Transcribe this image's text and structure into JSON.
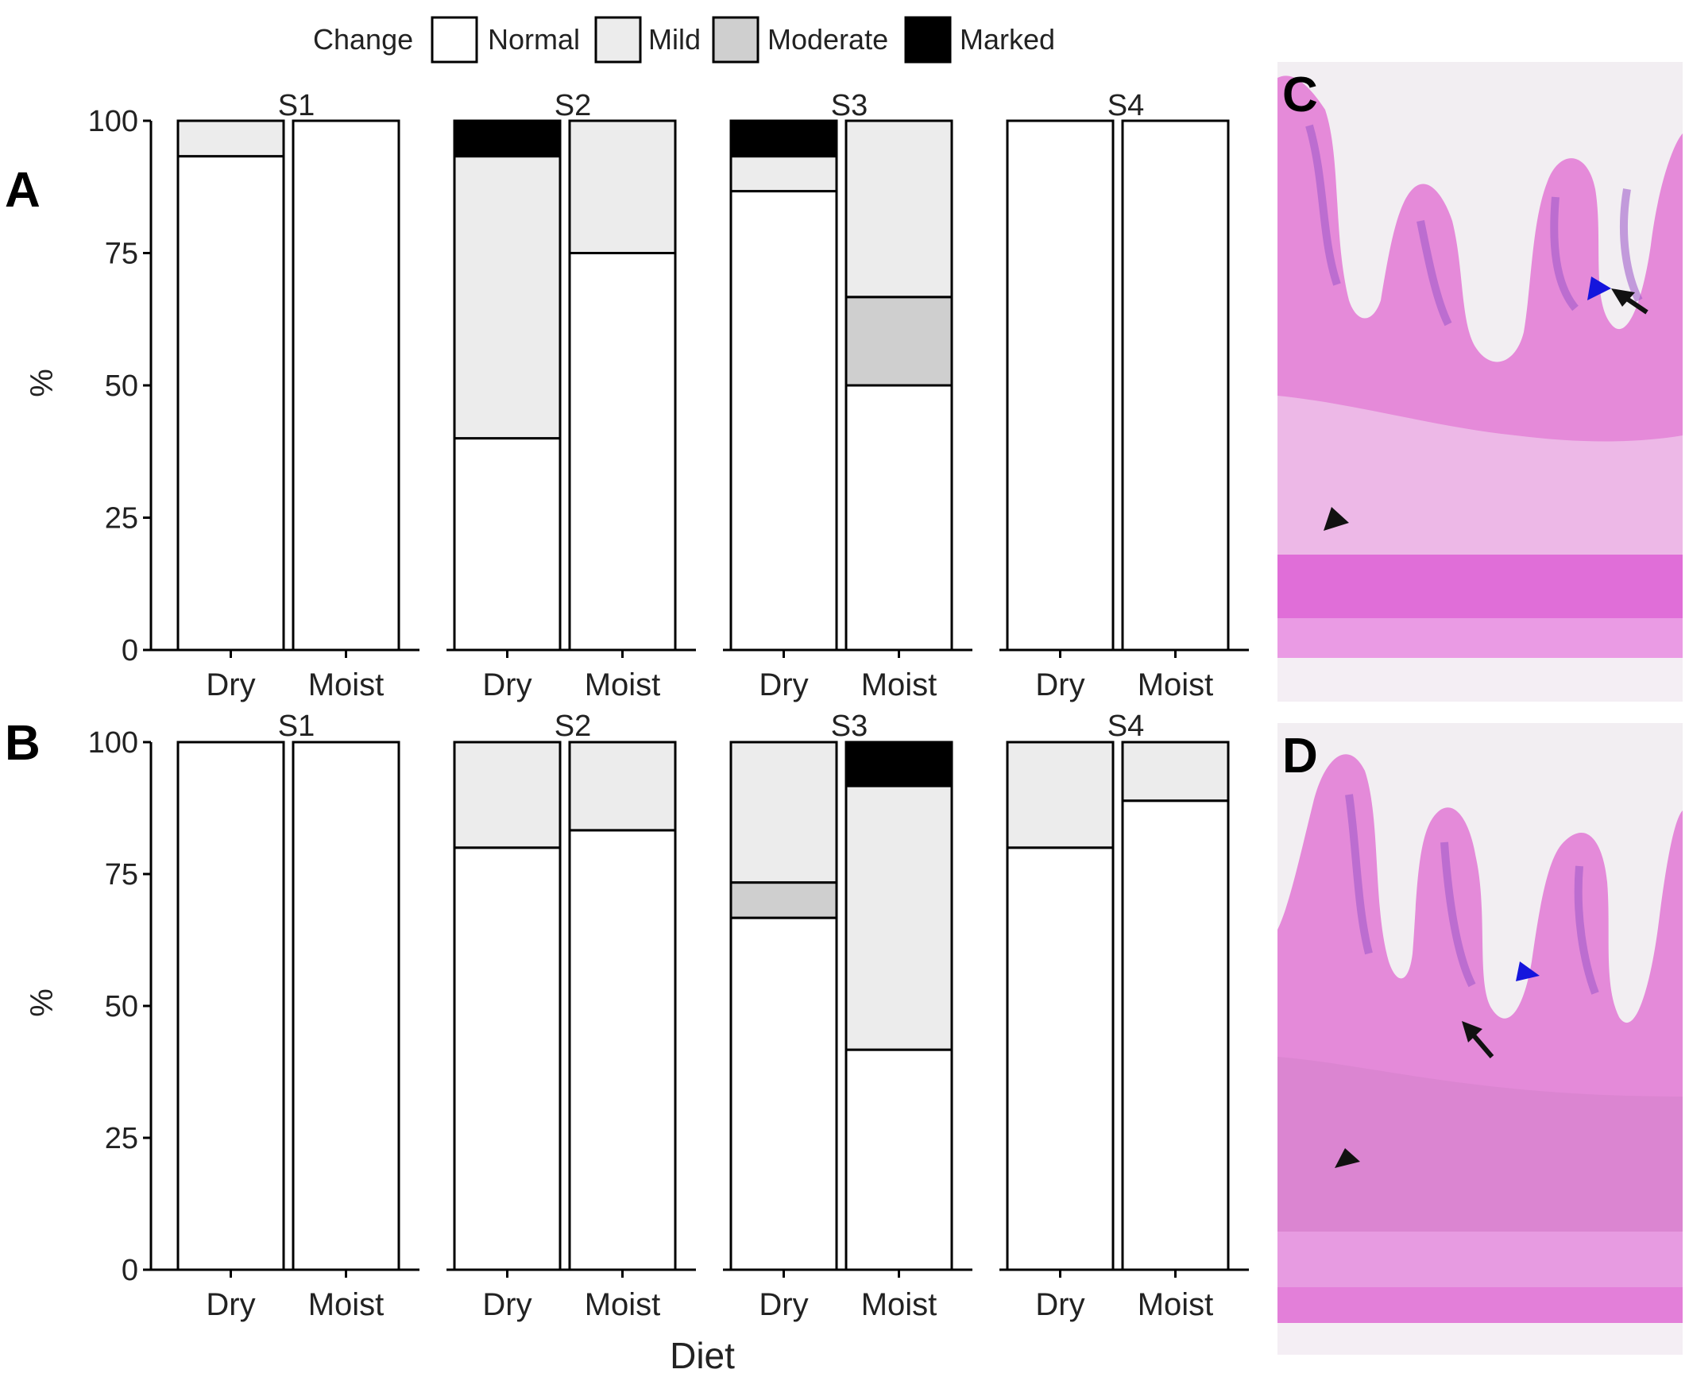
{
  "legend": {
    "title": "Change",
    "items": [
      {
        "label": "Normal",
        "color": "#ffffff"
      },
      {
        "label": "Mild",
        "color": "#ececec"
      },
      {
        "label": "Moderate",
        "color": "#cfcfcf"
      },
      {
        "label": "Marked",
        "color": "#000000"
      }
    ]
  },
  "xlabel": "Diet",
  "ylabel": "%",
  "panel_labels": {
    "a": "A",
    "b": "B",
    "c": "C",
    "d": "D"
  },
  "colors": {
    "Normal": "#ffffff",
    "Mild": "#ececec",
    "Moderate": "#cfcfcf",
    "Marked": "#000000",
    "tissue": "#e17fd8",
    "nuclei": "#9a56c8",
    "arrowhead_blue": "#1515dd"
  },
  "chart_data": [
    {
      "panel": "A",
      "type": "bar",
      "stacked": true,
      "ylabel": "%",
      "ylim": [
        0,
        100
      ],
      "yticks": [
        0,
        25,
        50,
        75,
        100
      ],
      "facets": [
        {
          "title": "S1",
          "categories": [
            "Dry",
            "Moist"
          ],
          "bars": [
            {
              "Normal": 93.3,
              "Mild": 6.7,
              "Moderate": 0,
              "Marked": 0
            },
            {
              "Normal": 100,
              "Mild": 0,
              "Moderate": 0,
              "Marked": 0
            }
          ]
        },
        {
          "title": "S2",
          "categories": [
            "Dry",
            "Moist"
          ],
          "bars": [
            {
              "Normal": 40,
              "Mild": 53.3,
              "Moderate": 0,
              "Marked": 6.7
            },
            {
              "Normal": 75,
              "Mild": 25,
              "Moderate": 0,
              "Marked": 0
            }
          ]
        },
        {
          "title": "S3",
          "categories": [
            "Dry",
            "Moist"
          ],
          "bars": [
            {
              "Normal": 86.7,
              "Mild": 6.6,
              "Moderate": 0,
              "Marked": 6.7
            },
            {
              "Normal": 50,
              "Mild": 33.3,
              "Moderate": 16.7,
              "Marked": 0
            }
          ]
        },
        {
          "title": "S4",
          "categories": [
            "Dry",
            "Moist"
          ],
          "bars": [
            {
              "Normal": 100,
              "Mild": 0,
              "Moderate": 0,
              "Marked": 0
            },
            {
              "Normal": 100,
              "Mild": 0,
              "Moderate": 0,
              "Marked": 0
            }
          ]
        }
      ]
    },
    {
      "panel": "B",
      "type": "bar",
      "stacked": true,
      "xlabel": "Diet",
      "ylabel": "%",
      "ylim": [
        0,
        100
      ],
      "yticks": [
        0,
        25,
        50,
        75,
        100
      ],
      "facets": [
        {
          "title": "S1",
          "categories": [
            "Dry",
            "Moist"
          ],
          "bars": [
            {
              "Normal": 100,
              "Mild": 0,
              "Moderate": 0,
              "Marked": 0
            },
            {
              "Normal": 100,
              "Mild": 0,
              "Moderate": 0,
              "Marked": 0
            }
          ]
        },
        {
          "title": "S2",
          "categories": [
            "Dry",
            "Moist"
          ],
          "bars": [
            {
              "Normal": 80,
              "Mild": 20,
              "Moderate": 0,
              "Marked": 0
            },
            {
              "Normal": 83.3,
              "Mild": 16.7,
              "Moderate": 0,
              "Marked": 0
            }
          ]
        },
        {
          "title": "S3",
          "categories": [
            "Dry",
            "Moist"
          ],
          "bars": [
            {
              "Normal": 66.7,
              "Mild": 26.6,
              "Moderate": 6.7,
              "Marked": 0
            },
            {
              "Normal": 41.7,
              "Mild": 50,
              "Moderate": 0,
              "Marked": 8.3
            }
          ]
        },
        {
          "title": "S4",
          "categories": [
            "Dry",
            "Moist"
          ],
          "bars": [
            {
              "Normal": 80,
              "Mild": 20,
              "Moderate": 0,
              "Marked": 0
            },
            {
              "Normal": 88.9,
              "Mild": 11.1,
              "Moderate": 0,
              "Marked": 0
            }
          ]
        }
      ]
    }
  ]
}
